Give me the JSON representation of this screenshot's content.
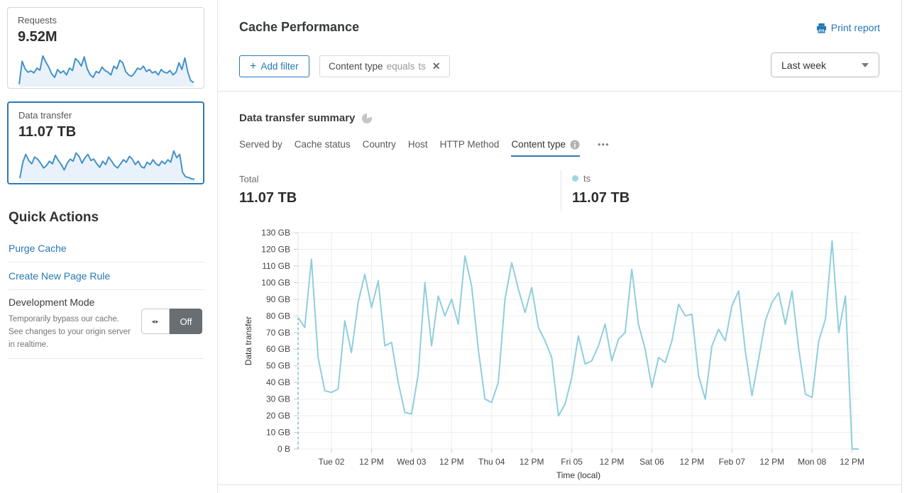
{
  "colors": {
    "accent_blue": "#3077b5",
    "link_blue": "#2578b5",
    "chart_line": "#8fcedd",
    "legend_dot": "#9fd6e3",
    "sparkline_line": "#4591c8",
    "sparkline_fill": "#e9f2fa",
    "toggle_off_bg": "#686e72"
  },
  "sidebar": {
    "requests_card": {
      "label": "Requests",
      "value": "9.52M",
      "sparkline": [
        5,
        72,
        50,
        40,
        44,
        38,
        52,
        46,
        88,
        70,
        55,
        35,
        25,
        48,
        38,
        44,
        32,
        52,
        45,
        80,
        72,
        58,
        85,
        50,
        32,
        25,
        42,
        38,
        55,
        45,
        40,
        32,
        58,
        50,
        75,
        68,
        42,
        32,
        28,
        38,
        52,
        48,
        58,
        42,
        48,
        38,
        42,
        32,
        48,
        40,
        38,
        45,
        32,
        40,
        68,
        48,
        82,
        40,
        15,
        10
      ]
    },
    "data_transfer_card": {
      "label": "Data transfer",
      "value": "11.07 TB",
      "sparkline": [
        8,
        55,
        78,
        60,
        50,
        70,
        64,
        52,
        38,
        45,
        58,
        50,
        75,
        60,
        48,
        32,
        52,
        64,
        58,
        82,
        72,
        52,
        68,
        78,
        60,
        64,
        50,
        40,
        58,
        48,
        70,
        58,
        45,
        38,
        50,
        62,
        55,
        72,
        64,
        48,
        58,
        42,
        38,
        55,
        48,
        62,
        50,
        45,
        58,
        50,
        62,
        55,
        88,
        68,
        78,
        25,
        12,
        10,
        6,
        5
      ]
    },
    "quick_actions": {
      "title": "Quick Actions",
      "links": [
        "Purge Cache",
        "Create New Page Rule"
      ],
      "dev_mode": {
        "title": "Development Mode",
        "description": "Temporarily bypass our cache. See changes to your origin server in realtime.",
        "toggle_state": "Off",
        "toggle_icon": "◂▸"
      }
    }
  },
  "header": {
    "title": "Cache Performance",
    "print_report": "Print report"
  },
  "filters": {
    "add_filter_label": "Add filter",
    "plus": "+",
    "chip": {
      "field": "Content type",
      "operator": "equals",
      "value": "ts",
      "close": "✕"
    },
    "time_range": "Last week"
  },
  "summary": {
    "title": "Data transfer summary",
    "tabs": [
      {
        "label": "Served by",
        "active": false
      },
      {
        "label": "Cache status",
        "active": false
      },
      {
        "label": "Country",
        "active": false
      },
      {
        "label": "Host",
        "active": false
      },
      {
        "label": "HTTP Method",
        "active": false
      },
      {
        "label": "Content type",
        "active": true,
        "has_info": true
      }
    ],
    "more": "•••",
    "total": {
      "label": "Total",
      "value": "11.07 TB"
    },
    "legend": {
      "label": "ts",
      "value": "11.07 TB",
      "color": "#9fd6e3"
    }
  },
  "chart_data": {
    "type": "line",
    "title": "Data transfer summary",
    "xlabel": "Time (local)",
    "ylabel": "Data transfer",
    "unit": "GB",
    "ylim": [
      0,
      130
    ],
    "ytick_step": 10,
    "yticks": [
      "0 B",
      "10 GB",
      "20 GB",
      "30 GB",
      "40 GB",
      "50 GB",
      "60 GB",
      "70 GB",
      "80 GB",
      "90 GB",
      "100 GB",
      "110 GB",
      "120 GB",
      "130 GB"
    ],
    "xticks": [
      "Tue 02",
      "12 PM",
      "Wed 03",
      "12 PM",
      "Thu 04",
      "12 PM",
      "Fri 05",
      "12 PM",
      "Sat 06",
      "12 PM",
      "Feb 07",
      "12 PM",
      "Mon 08",
      "12 PM"
    ],
    "xtick_first_index": 5,
    "xtick_index_step": 6,
    "grid": true,
    "dashed_start": true,
    "series": [
      {
        "name": "ts",
        "color": "#8fcedd",
        "interval_hours": 2,
        "values_gb": [
          79,
          73,
          114,
          55,
          35,
          34,
          36,
          77,
          58,
          88,
          105,
          85,
          101,
          62,
          64,
          40,
          22,
          21,
          45,
          100,
          62,
          92,
          80,
          90,
          75,
          116,
          98,
          60,
          30,
          28,
          40,
          90,
          112,
          96,
          82,
          97,
          73,
          65,
          55,
          20,
          27,
          43,
          68,
          51,
          53,
          62,
          75,
          53,
          66,
          70,
          108,
          75,
          60,
          37,
          55,
          52,
          65,
          87,
          80,
          81,
          44,
          30,
          62,
          72,
          65,
          86,
          95,
          59,
          32,
          54,
          77,
          88,
          94,
          75,
          95,
          60,
          33,
          31,
          65,
          78,
          125,
          70,
          92,
          0,
          0
        ]
      }
    ]
  }
}
